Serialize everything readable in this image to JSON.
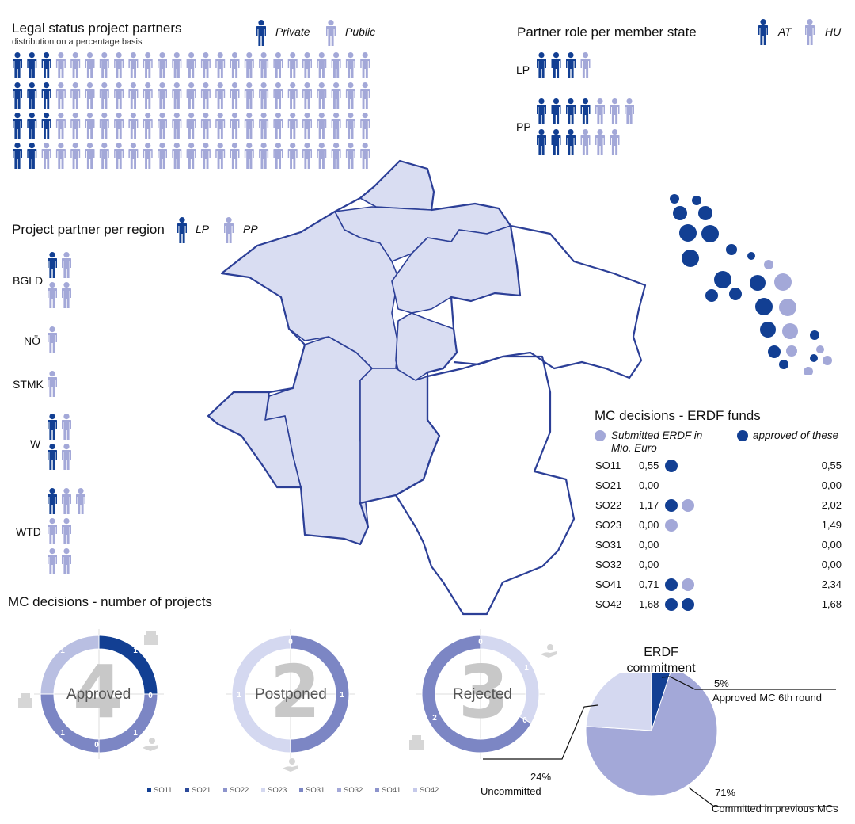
{
  "colors": {
    "dark": "#123f93",
    "light": "#a3a8d8",
    "mid": "#7c86c4",
    "pale": "#d4d8f0",
    "map_fill": "#d9ddf2",
    "map_stroke": "#2c3f97"
  },
  "legal_status": {
    "title": "Legal status project partners",
    "subtitle": "distribution on a percentage basis",
    "legend": [
      {
        "name": "Private",
        "icon": "person-icon",
        "color": "#123f93"
      },
      {
        "name": "Public",
        "icon": "person-icon",
        "color": "#a3a8d8"
      }
    ]
  },
  "partner_role": {
    "title": "Partner role per member state",
    "legend": [
      {
        "name": "AT",
        "color": "#123f93"
      },
      {
        "name": "HU",
        "color": "#a3a8d8"
      }
    ],
    "rows": [
      {
        "label": "LP"
      },
      {
        "label": "PP"
      }
    ]
  },
  "region": {
    "title": "Project partner per region",
    "legend": [
      {
        "name": "LP",
        "color": "#123f93"
      },
      {
        "name": "PP",
        "color": "#a3a8d8"
      }
    ],
    "rows": [
      {
        "label": "BGLD"
      },
      {
        "label": "NÖ"
      },
      {
        "label": "STMK"
      },
      {
        "label": "W"
      },
      {
        "label": "WTD"
      }
    ]
  },
  "mc_funds": {
    "title": "MC decisions - ERDF funds",
    "legend_submitted": "Submitted ERDF in Mio. Euro",
    "legend_approved": "approved of these"
  },
  "mc_projects": {
    "title": "MC decisions - number of projects",
    "donuts": [
      {
        "label": "Approved",
        "total": "4"
      },
      {
        "label": "Postponed",
        "total": "2"
      },
      {
        "label": "Rejected",
        "total": "3"
      }
    ]
  },
  "erdf_commitment": {
    "title": "ERDF commitment",
    "slices": [
      {
        "label": "Approved MC 6th round",
        "pct": "5%"
      },
      {
        "label": "Committed in previous MCs",
        "pct": "71%"
      },
      {
        "label": "Uncommitted",
        "pct": "24%"
      }
    ]
  },
  "chart_data": [
    {
      "type": "bar",
      "title": "Legal status project partners",
      "subtitle": "distribution on a percentage basis",
      "categories": [
        "Private",
        "Public"
      ],
      "values": [
        11,
        89
      ],
      "grid_rows": [
        [
          3,
          22
        ],
        [
          3,
          22
        ],
        [
          3,
          22
        ],
        [
          2,
          23
        ]
      ]
    },
    {
      "type": "bar",
      "title": "Partner role per member state",
      "categories": [
        "LP",
        "PP"
      ],
      "series": [
        {
          "name": "AT",
          "values": [
            3,
            7
          ]
        },
        {
          "name": "HU",
          "values": [
            1,
            6
          ]
        }
      ]
    },
    {
      "type": "bar",
      "title": "Project partner per region",
      "categories": [
        "BGLD",
        "NÖ",
        "STMK",
        "W",
        "WTD"
      ],
      "series": [
        {
          "name": "LP",
          "values": [
            1,
            0,
            0,
            2,
            1
          ]
        },
        {
          "name": "PP",
          "values": [
            3,
            1,
            1,
            2,
            6
          ]
        }
      ]
    },
    {
      "type": "table",
      "title": "MC decisions - ERDF funds",
      "columns": [
        "Submitted ERDF in Mio. Euro",
        "approved of these"
      ],
      "rows": [
        {
          "so": "SO11",
          "approved": "0,55",
          "submitted": "0,55",
          "dots": [
            "dark"
          ]
        },
        {
          "so": "SO21",
          "approved": "0,00",
          "submitted": "0,00",
          "dots": []
        },
        {
          "so": "SO22",
          "approved": "1,17",
          "submitted": "2,02",
          "dots": [
            "dark",
            "light"
          ]
        },
        {
          "so": "SO23",
          "approved": "0,00",
          "submitted": "1,49",
          "dots": [
            "light"
          ]
        },
        {
          "so": "SO31",
          "approved": "0,00",
          "submitted": "0,00",
          "dots": []
        },
        {
          "so": "SO32",
          "approved": "0,00",
          "submitted": "0,00",
          "dots": []
        },
        {
          "so": "SO41",
          "approved": "0,71",
          "submitted": "2,34",
          "dots": [
            "dark",
            "light"
          ]
        },
        {
          "so": "SO42",
          "approved": "1,68",
          "submitted": "1,68",
          "dots": [
            "dark",
            "dark"
          ]
        }
      ]
    },
    {
      "type": "pie",
      "title": "MC decisions - number of projects",
      "donuts": [
        {
          "label": "Approved",
          "total": 4,
          "segments": [
            1,
            0,
            1,
            0,
            1,
            1
          ],
          "colors": [
            "#123f93",
            "#7c86c4",
            "#7c86c4",
            "#7c86c4",
            "#7c86c4",
            "#b9bfe2"
          ],
          "labels": [
            "1",
            "0",
            "1",
            "0",
            "1",
            "1"
          ]
        },
        {
          "label": "Postponed",
          "total": 2,
          "segments": [
            1,
            1
          ],
          "colors": [
            "#7c86c4",
            "#d4d8f0"
          ],
          "labels": [
            "1",
            "1"
          ],
          "zero_label": "0"
        },
        {
          "label": "Rejected",
          "total": 3,
          "segments": [
            1,
            2
          ],
          "colors": [
            "#d4d8f0",
            "#7c86c4"
          ],
          "labels": [
            "1",
            "2"
          ],
          "extra_labels": [
            "0",
            "0"
          ]
        }
      ],
      "legend": [
        "SO11",
        "SO21",
        "SO22",
        "SO23",
        "SO31",
        "SO32",
        "SO41",
        "SO42"
      ],
      "legend_colors": [
        "#123f93",
        "#2c4a9a",
        "#8d94cc",
        "#d4d8f0",
        "#7c86c4",
        "#a3a8d8",
        "#8d94cc",
        "#c5c9ea"
      ]
    },
    {
      "type": "pie",
      "title": "ERDF commitment",
      "categories": [
        "Approved MC 6th round",
        "Committed in previous MCs",
        "Uncommitted"
      ],
      "values": [
        5,
        71,
        24
      ],
      "colors": [
        "#123f93",
        "#a3a8d8",
        "#d4d8f0"
      ]
    }
  ]
}
